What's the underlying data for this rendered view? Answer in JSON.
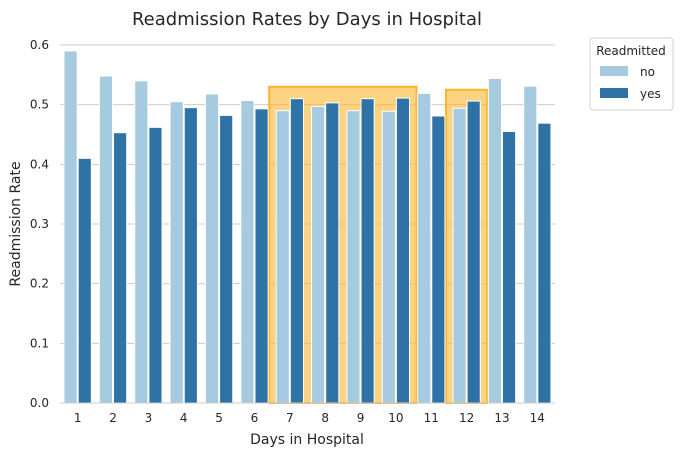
{
  "chart_data": {
    "type": "bar",
    "title": "Readmission Rates by Days in Hospital",
    "xlabel": "Days in Hospital",
    "ylabel": "Readmission Rate",
    "ylim": [
      0,
      0.6
    ],
    "yticks": [
      "0.0",
      "0.1",
      "0.2",
      "0.3",
      "0.4",
      "0.5",
      "0.6"
    ],
    "categories": [
      "1",
      "2",
      "3",
      "4",
      "5",
      "6",
      "7",
      "8",
      "9",
      "10",
      "11",
      "12",
      "13",
      "14"
    ],
    "grid": "horizontal",
    "legend": {
      "title": "Readmitted",
      "placement": "outside-top-right"
    },
    "series": [
      {
        "name": "no",
        "color": "#a6cbe0",
        "values": [
          0.59,
          0.548,
          0.54,
          0.505,
          0.518,
          0.507,
          0.49,
          0.497,
          0.49,
          0.489,
          0.519,
          0.494,
          0.544,
          0.531
        ]
      },
      {
        "name": "yes",
        "color": "#2e72a6",
        "values": [
          0.41,
          0.453,
          0.462,
          0.495,
          0.482,
          0.493,
          0.51,
          0.503,
          0.51,
          0.511,
          0.481,
          0.506,
          0.455,
          0.469
        ]
      }
    ],
    "highlights": [
      {
        "from": "7",
        "to": "10",
        "color": "#fbb42c"
      },
      {
        "from": "12",
        "to": "12",
        "color": "#fbb42c"
      }
    ]
  }
}
